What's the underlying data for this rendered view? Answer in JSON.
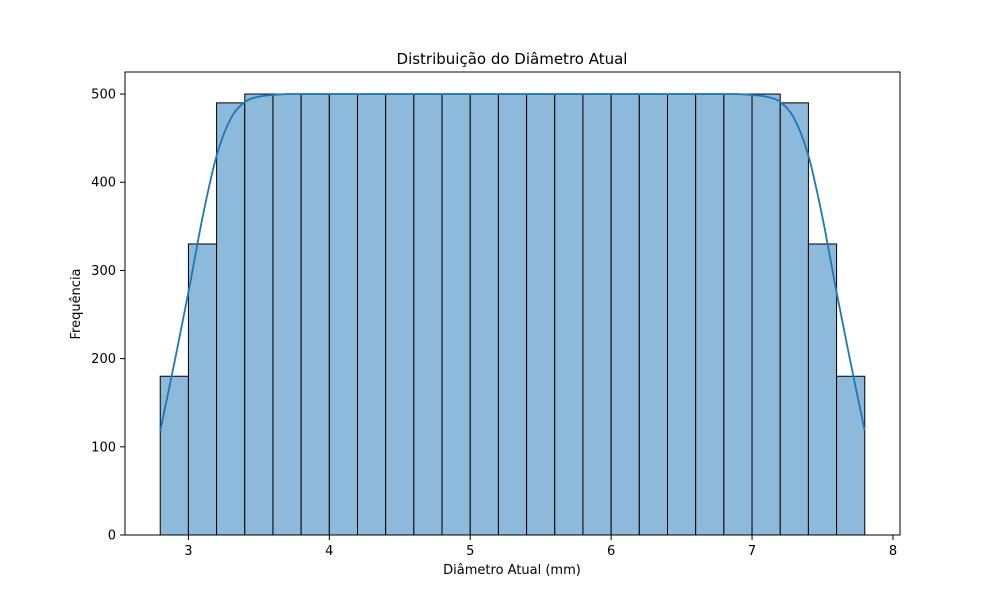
{
  "chart_data": {
    "type": "bar",
    "title": "Distribuição do Diâmetro Atual",
    "xlabel": "Diâmetro Atual (mm)",
    "ylabel": "Frequência",
    "xlim": [
      2.55,
      8.05
    ],
    "ylim": [
      0,
      525
    ],
    "xticks": [
      3,
      4,
      5,
      6,
      7,
      8
    ],
    "yticks": [
      0,
      100,
      200,
      300,
      400,
      500
    ],
    "grid": false,
    "bins": [
      {
        "x0": 2.8,
        "x1": 3.0,
        "value": 180
      },
      {
        "x0": 3.0,
        "x1": 3.2,
        "value": 330
      },
      {
        "x0": 3.2,
        "x1": 3.4,
        "value": 490
      },
      {
        "x0": 3.4,
        "x1": 3.6,
        "value": 500
      },
      {
        "x0": 3.6,
        "x1": 3.8,
        "value": 500
      },
      {
        "x0": 3.8,
        "x1": 4.0,
        "value": 500
      },
      {
        "x0": 4.0,
        "x1": 4.2,
        "value": 500
      },
      {
        "x0": 4.2,
        "x1": 4.4,
        "value": 500
      },
      {
        "x0": 4.4,
        "x1": 4.6,
        "value": 500
      },
      {
        "x0": 4.6,
        "x1": 4.8,
        "value": 500
      },
      {
        "x0": 4.8,
        "x1": 5.0,
        "value": 500
      },
      {
        "x0": 5.0,
        "x1": 5.2,
        "value": 500
      },
      {
        "x0": 5.2,
        "x1": 5.4,
        "value": 500
      },
      {
        "x0": 5.4,
        "x1": 5.6,
        "value": 500
      },
      {
        "x0": 5.6,
        "x1": 5.8,
        "value": 500
      },
      {
        "x0": 5.8,
        "x1": 6.0,
        "value": 500
      },
      {
        "x0": 6.0,
        "x1": 6.2,
        "value": 500
      },
      {
        "x0": 6.2,
        "x1": 6.4,
        "value": 500
      },
      {
        "x0": 6.4,
        "x1": 6.6,
        "value": 500
      },
      {
        "x0": 6.6,
        "x1": 6.8,
        "value": 500
      },
      {
        "x0": 6.8,
        "x1": 7.0,
        "value": 500
      },
      {
        "x0": 7.0,
        "x1": 7.2,
        "value": 500
      },
      {
        "x0": 7.2,
        "x1": 7.4,
        "value": 490
      },
      {
        "x0": 7.4,
        "x1": 7.6,
        "value": 330
      },
      {
        "x0": 7.6,
        "x1": 7.8,
        "value": 180
      }
    ],
    "kde": {
      "x": [
        2.8,
        2.9,
        3.0,
        3.1,
        3.2,
        3.3,
        3.4,
        3.5,
        3.6,
        3.7,
        3.8,
        3.9,
        4.0,
        5.0,
        6.0,
        6.7,
        6.8,
        6.9,
        7.0,
        7.1,
        7.2,
        7.3,
        7.4,
        7.5,
        7.6,
        7.7,
        7.8
      ],
      "y": [
        118,
        195,
        275,
        360,
        430,
        472,
        491,
        497,
        499,
        500,
        500,
        500,
        500,
        500,
        500,
        500,
        500,
        500,
        499,
        497,
        491,
        472,
        430,
        360,
        275,
        195,
        118
      ]
    },
    "colors": {
      "bar_fill": "#8db9da",
      "bar_edge": "#000000",
      "kde_line": "#1f77b4"
    }
  }
}
